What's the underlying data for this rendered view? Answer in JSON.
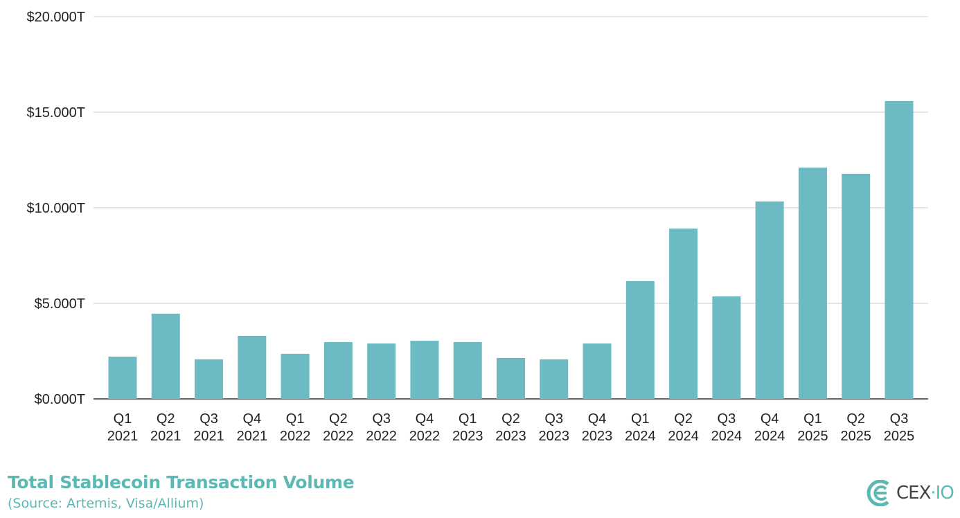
{
  "chart_data": {
    "type": "bar",
    "title": "Total Stablecoin Transaction Volume",
    "subtitle": "(Source: Artemis, Visa/Allium)",
    "categories": [
      [
        "Q1",
        "2021"
      ],
      [
        "Q2",
        "2021"
      ],
      [
        "Q3",
        "2021"
      ],
      [
        "Q4",
        "2021"
      ],
      [
        "Q1",
        "2022"
      ],
      [
        "Q2",
        "2022"
      ],
      [
        "Q3",
        "2022"
      ],
      [
        "Q4",
        "2022"
      ],
      [
        "Q1",
        "2023"
      ],
      [
        "Q2",
        "2023"
      ],
      [
        "Q3",
        "2023"
      ],
      [
        "Q4",
        "2023"
      ],
      [
        "Q1",
        "2024"
      ],
      [
        "Q2",
        "2024"
      ],
      [
        "Q3",
        "2024"
      ],
      [
        "Q4",
        "2024"
      ],
      [
        "Q1",
        "2025"
      ],
      [
        "Q2",
        "2025"
      ],
      [
        "Q3",
        "2025"
      ]
    ],
    "values": [
      2.21,
      4.46,
      2.07,
      3.3,
      2.36,
      2.97,
      2.9,
      3.04,
      2.97,
      2.14,
      2.07,
      2.9,
      6.16,
      8.91,
      5.36,
      10.33,
      12.1,
      11.78,
      15.58
    ],
    "unit": "trillion USD",
    "ylim": [
      0,
      20
    ],
    "yticks": [
      0,
      5,
      10,
      15,
      20
    ],
    "ytick_labels": [
      "$0.000T",
      "$5.000T",
      "$10.000T",
      "$15.000T",
      "$20.000T"
    ],
    "grid": true,
    "bar_color": "#6bbac4",
    "xlabel": "",
    "ylabel": ""
  },
  "logo": {
    "text_main": "CEX",
    "text_dot": "·",
    "text_io": "IO",
    "color": "#5db8b3"
  }
}
